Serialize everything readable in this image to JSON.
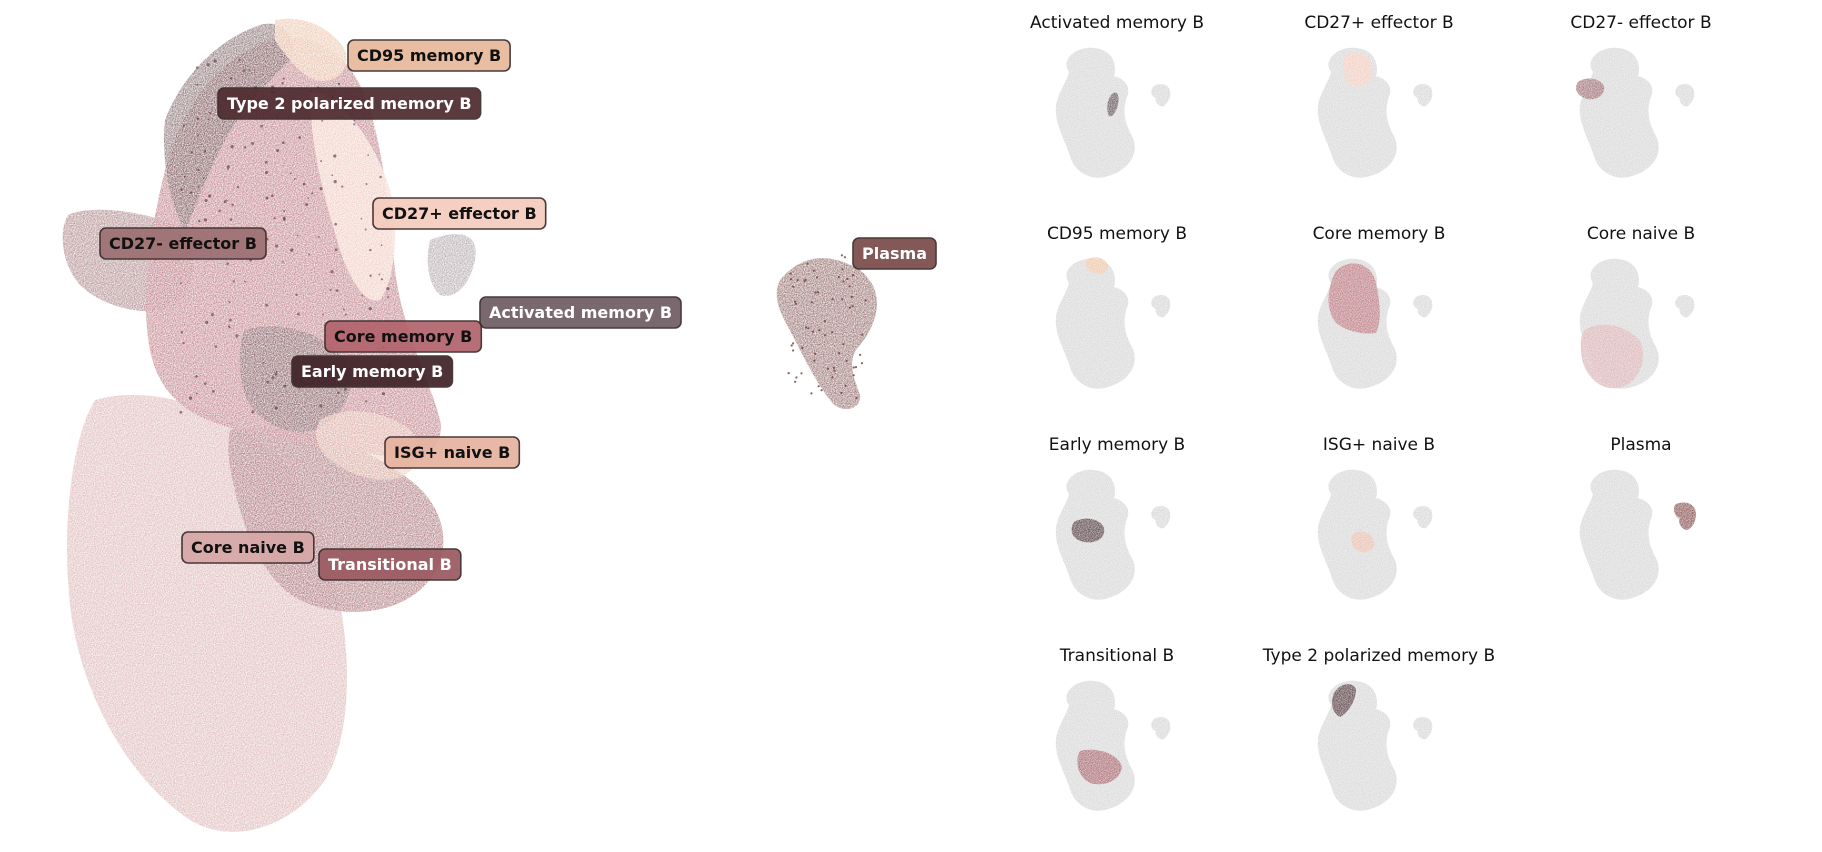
{
  "chart_data": [
    {
      "type": "scatter",
      "title": "",
      "xlabel": "",
      "ylabel": "",
      "axes": "off",
      "grid": false,
      "legend": "none",
      "clusters": [
        {
          "label": "CD95 memory B",
          "color": "#e8b89a",
          "text_color": "#111111"
        },
        {
          "label": "Type 2 polarized memory B",
          "color": "#4e2a2e",
          "text_color": "#ffffff"
        },
        {
          "label": "CD27+ effector B",
          "color": "#f3cbbd",
          "text_color": "#111111"
        },
        {
          "label": "CD27- effector B",
          "color": "#9c6f72",
          "text_color": "#111111"
        },
        {
          "label": "Plasma",
          "color": "#7a4a48",
          "text_color": "#ffffff"
        },
        {
          "label": "Activated memory B",
          "color": "#6e5c62",
          "text_color": "#ffffff"
        },
        {
          "label": "Core memory B",
          "color": "#b1636c",
          "text_color": "#111111"
        },
        {
          "label": "Early memory B",
          "color": "#3e2127",
          "text_color": "#ffffff"
        },
        {
          "label": "ISG+ naive B",
          "color": "#e5b29f",
          "text_color": "#111111"
        },
        {
          "label": "Core naive B",
          "color": "#d6a6a6",
          "text_color": "#111111"
        },
        {
          "label": "Transitional B",
          "color": "#9a5a60",
          "text_color": "#ffffff"
        }
      ]
    },
    {
      "type": "scatter",
      "facet": "per-cluster highlight",
      "background_color": "#d3d3d3",
      "axes": "off",
      "panels": [
        {
          "title": "Activated memory B",
          "color": "#4a3a3e"
        },
        {
          "title": "CD27+ effector B",
          "color": "#f2c4b4"
        },
        {
          "title": "CD27- effector B",
          "color": "#8f5a5e"
        },
        {
          "title": "CD95 memory B",
          "color": "#ebbd96"
        },
        {
          "title": "Core memory B",
          "color": "#b1636c"
        },
        {
          "title": "Core naive B",
          "color": "#d6a6a8"
        },
        {
          "title": "Early memory B",
          "color": "#3a1f24"
        },
        {
          "title": "ISG+ naive B",
          "color": "#e5b29f"
        },
        {
          "title": "Plasma",
          "color": "#7a3a3a"
        },
        {
          "title": "Transitional B",
          "color": "#9a5058"
        },
        {
          "title": "Type 2 polarized memory B",
          "color": "#3a1c20"
        }
      ]
    }
  ]
}
